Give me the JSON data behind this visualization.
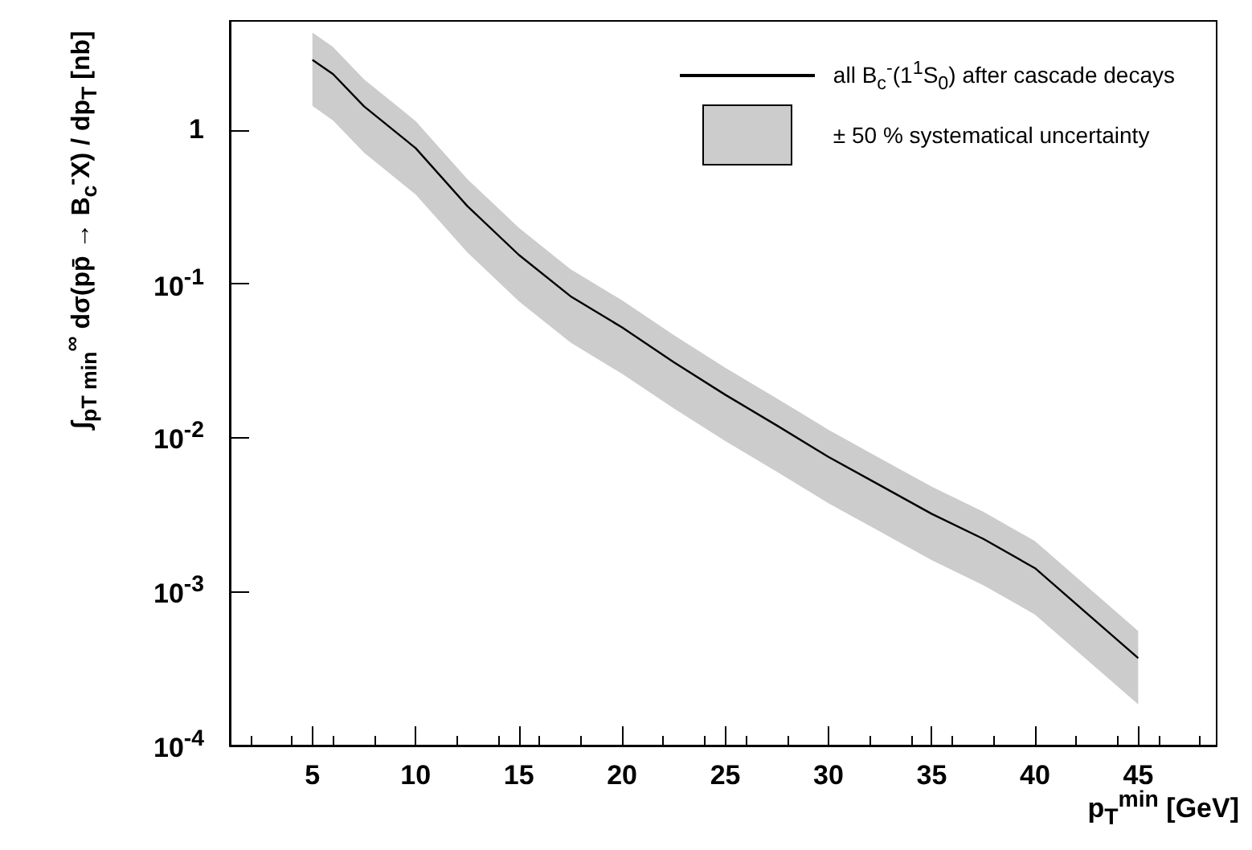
{
  "chart_data": {
    "type": "line",
    "xlabel": "p$_{T}$$^{min}$ [GeV]",
    "ylabel": "∫$_{pT min}$$^{∞}$ dσ(pp̄ → B$_{c}$$^{-}$X) / dp$_{T}$ [nb]",
    "annotations": [
      "± 50 % systematical uncertainty"
    ],
    "x": [
      5,
      6,
      7.5,
      10,
      12.5,
      15,
      17.5,
      20,
      22.5,
      25,
      27.5,
      30,
      32.5,
      35,
      37.5,
      40,
      45
    ],
    "series": [
      {
        "name": "all B$_{c}$$^{-}$(1$^{1}$S$_{0}$) after cascade decays",
        "color": "#000000",
        "values": [
          2.85,
          2.3,
          1.42,
          0.76,
          0.32,
          0.154,
          0.083,
          0.052,
          0.031,
          0.019,
          0.012,
          0.0075,
          0.0049,
          0.0032,
          0.0022,
          0.00142,
          0.00037
        ],
        "lower": [
          1.43,
          1.15,
          0.71,
          0.38,
          0.16,
          0.077,
          0.0415,
          0.026,
          0.0155,
          0.0095,
          0.006,
          0.00375,
          0.00245,
          0.0016,
          0.0011,
          0.00071,
          0.000185
        ],
        "upper": [
          4.28,
          3.45,
          2.13,
          1.14,
          0.48,
          0.231,
          0.1245,
          0.078,
          0.0465,
          0.0285,
          0.018,
          0.01125,
          0.00735,
          0.0048,
          0.0033,
          0.00213,
          0.000555
        ]
      }
    ],
    "xlim": [
      1,
      48.8
    ],
    "xticks": [
      5,
      10,
      15,
      20,
      25,
      30,
      35,
      40,
      45
    ],
    "ylim": [
      0.0001,
      5.1
    ],
    "yticks": [
      {
        "value": 0.0001,
        "label": "10$^{-4}$"
      },
      {
        "value": 0.001,
        "label": "10$^{-3}$"
      },
      {
        "value": 0.01,
        "label": "10$^{-2}$"
      },
      {
        "value": 0.1,
        "label": "10$^{-1}$"
      },
      1
    ],
    "log": "y",
    "grid": false,
    "legend": "top right",
    "marker": "none",
    "line_style": "solid"
  }
}
